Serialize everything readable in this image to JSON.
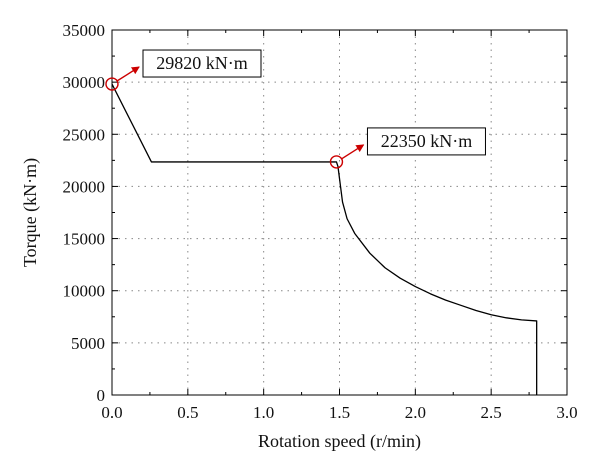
{
  "chart_data": {
    "type": "line",
    "title": "",
    "xlabel": "Rotation speed (r/min)",
    "ylabel": "Torque (kN·m)",
    "xlim": [
      0.0,
      3.0
    ],
    "ylim": [
      0,
      35000
    ],
    "x_ticks": [
      "0.0",
      "0.5",
      "1.0",
      "1.5",
      "2.0",
      "2.5",
      "3.0"
    ],
    "y_ticks": [
      "0",
      "5000",
      "10000",
      "15000",
      "20000",
      "25000",
      "30000",
      "35000"
    ],
    "grid": true,
    "series": [
      {
        "color": "#000000",
        "x": [
          0.0,
          0.26,
          1.48,
          1.49,
          1.52,
          1.55,
          1.6,
          1.7,
          1.8,
          1.9,
          2.0,
          2.1,
          2.2,
          2.3,
          2.4,
          2.5,
          2.6,
          2.7,
          2.8,
          2.8
        ],
        "y": [
          29820,
          22350,
          22350,
          21900,
          18500,
          16900,
          15500,
          13600,
          12200,
          11200,
          10400,
          9700,
          9100,
          8600,
          8100,
          7700,
          7400,
          7200,
          7100,
          0
        ]
      }
    ],
    "annotations": [
      {
        "text": "29820 kN·m",
        "x": 0.0,
        "y": 29820,
        "color": "#cc0000"
      },
      {
        "text": "22350 kN·m",
        "x": 1.48,
        "y": 22350,
        "color": "#cc0000"
      }
    ]
  }
}
